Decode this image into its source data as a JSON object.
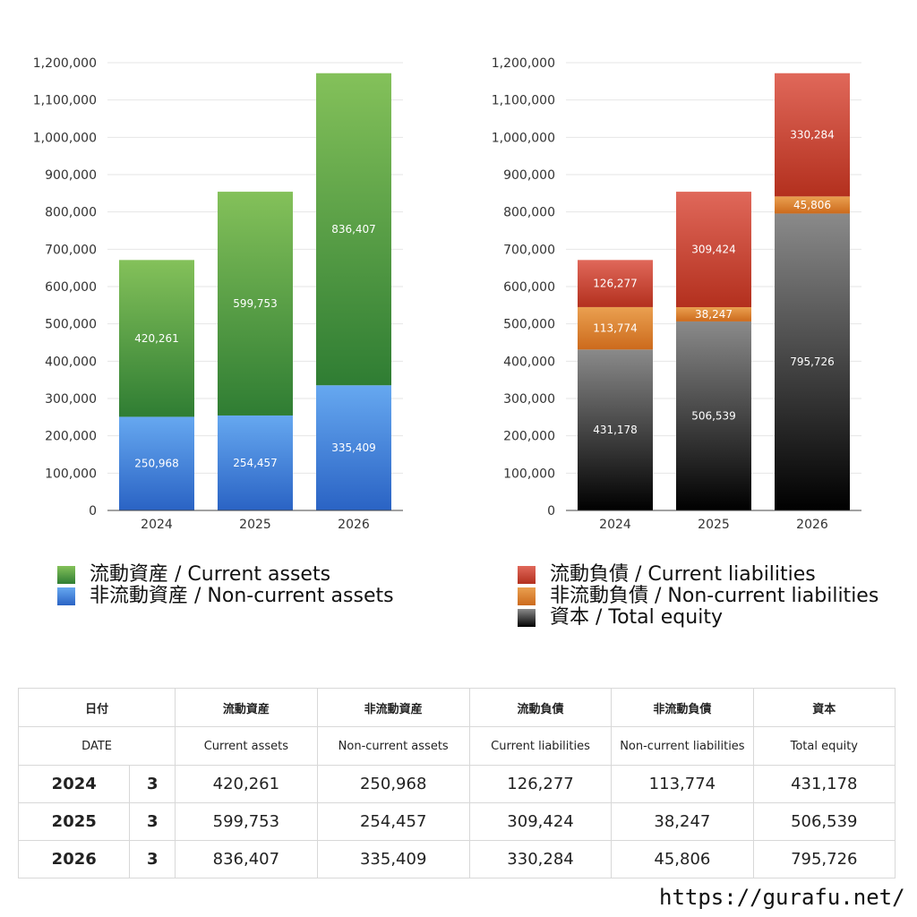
{
  "chart_data": [
    {
      "type": "bar",
      "stacked": true,
      "categories": [
        "2024",
        "2025",
        "2026"
      ],
      "ylim": [
        0,
        1200000
      ],
      "yticks": [
        "0",
        "100,000",
        "200,000",
        "300,000",
        "400,000",
        "500,000",
        "600,000",
        "700,000",
        "800,000",
        "900,000",
        "1,000,000",
        "1,100,000",
        "1,200,000"
      ],
      "grid": true,
      "series": [
        {
          "name": "非流動資産 / Non-current assets",
          "values": [
            250968,
            254457,
            335409
          ],
          "labels": [
            "250,968",
            "254,457",
            "335,409"
          ],
          "color_top": "#66a8f0",
          "color_bottom": "#2a63c4"
        },
        {
          "name": "流動資産 / Current assets",
          "values": [
            420261,
            599753,
            836407
          ],
          "labels": [
            "420,261",
            "599,753",
            "836,407"
          ],
          "color_top": "#84c15a",
          "color_bottom": "#2f7d33"
        }
      ],
      "legend": [
        {
          "label": "流動資産 / Current assets",
          "color": "#4f9b3e"
        },
        {
          "label": "非流動資産 / Non-current assets",
          "color": "#3a7bd5"
        }
      ]
    },
    {
      "type": "bar",
      "stacked": true,
      "categories": [
        "2024",
        "2025",
        "2026"
      ],
      "ylim": [
        0,
        1200000
      ],
      "yticks": [
        "0",
        "100,000",
        "200,000",
        "300,000",
        "400,000",
        "500,000",
        "600,000",
        "700,000",
        "800,000",
        "900,000",
        "1,000,000",
        "1,100,000",
        "1,200,000"
      ],
      "grid": true,
      "series": [
        {
          "name": "資本 / Total equity",
          "values": [
            431178,
            506539,
            795726
          ],
          "labels": [
            "431,178",
            "506,539",
            "795,726"
          ],
          "color_top": "#8a8a8a",
          "color_bottom": "#000000"
        },
        {
          "name": "非流動負債 / Non-current liabilities",
          "values": [
            113774,
            38247,
            45806
          ],
          "labels": [
            "113,774",
            "38,247",
            "45,806"
          ],
          "color_top": "#eaa050",
          "color_bottom": "#cc6a1c"
        },
        {
          "name": "流動負債 / Current liabilities",
          "values": [
            126277,
            309424,
            330284
          ],
          "labels": [
            "126,277",
            "309,424",
            "330,284"
          ],
          "color_top": "#e0685a",
          "color_bottom": "#b3301e"
        }
      ],
      "legend": [
        {
          "label": "流動負債 / Current liabilities",
          "color": "#d04a3a"
        },
        {
          "label": "非流動負債 / Non-current liabilities",
          "color": "#e08a35"
        },
        {
          "label": "資本 / Total equity",
          "color": "#222222"
        }
      ]
    }
  ],
  "table": {
    "headers_jp": [
      "日付",
      "流動資産",
      "非流動資産",
      "流動負債",
      "非流動負債",
      "資本"
    ],
    "headers_en": [
      "DATE",
      "Current assets",
      "Non-current assets",
      "Current liabilities",
      "Non-current liabilities",
      "Total equity"
    ],
    "rows": [
      {
        "year": "2024",
        "count": "3",
        "cells": [
          "420,261",
          "250,968",
          "126,277",
          "113,774",
          "431,178"
        ]
      },
      {
        "year": "2025",
        "count": "3",
        "cells": [
          "599,753",
          "254,457",
          "309,424",
          "38,247",
          "506,539"
        ]
      },
      {
        "year": "2026",
        "count": "3",
        "cells": [
          "836,407",
          "335,409",
          "330,284",
          "45,806",
          "795,726"
        ]
      }
    ]
  },
  "footer_url": "https://gurafu.net/"
}
